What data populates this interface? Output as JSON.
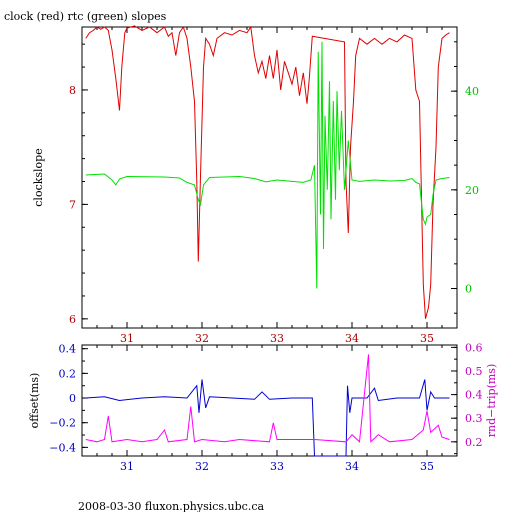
{
  "title": "clock (red) rtc (green) slopes",
  "footer": "2008-03-30 fluxon.physics.ubc.ca",
  "colors": {
    "clock": "#e00000",
    "rtc": "#00e000",
    "offset": "#0000d0",
    "rndtrip": "#ff00ff",
    "axis": "#000000"
  },
  "chart_data": [
    {
      "type": "line",
      "title": "clock (red) rtc (green) slopes",
      "xlabel": "",
      "ylabel": "clockslope",
      "y2label": "",
      "xlim": [
        30.4,
        35.4
      ],
      "ylim": [
        5.92,
        8.55
      ],
      "y2lim": [
        -8,
        53
      ],
      "xticks": [
        "31",
        "32",
        "33",
        "34",
        "35"
      ],
      "yticks": [
        "6",
        "7",
        "8"
      ],
      "y2ticks": [
        "0",
        "20",
        "40"
      ],
      "series": [
        {
          "axis": "left",
          "color": "#e00000",
          "points": [
            [
              30.45,
              8.45
            ],
            [
              30.5,
              8.5
            ],
            [
              30.55,
              8.52
            ],
            [
              30.6,
              8.55
            ],
            [
              30.65,
              8.53
            ],
            [
              30.7,
              8.55
            ],
            [
              30.75,
              8.52
            ],
            [
              30.8,
              8.35
            ],
            [
              30.85,
              8.1
            ],
            [
              30.9,
              7.82
            ],
            [
              30.93,
              8.2
            ],
            [
              30.97,
              8.5
            ],
            [
              31.0,
              8.54
            ],
            [
              31.1,
              8.56
            ],
            [
              31.2,
              8.52
            ],
            [
              31.3,
              8.55
            ],
            [
              31.4,
              8.5
            ],
            [
              31.5,
              8.55
            ],
            [
              31.55,
              8.47
            ],
            [
              31.6,
              8.5
            ],
            [
              31.65,
              8.3
            ],
            [
              31.7,
              8.5
            ],
            [
              31.75,
              8.55
            ],
            [
              31.8,
              8.45
            ],
            [
              31.85,
              8.2
            ],
            [
              31.9,
              7.9
            ],
            [
              31.93,
              7.2
            ],
            [
              31.95,
              6.5
            ],
            [
              31.98,
              7.25
            ],
            [
              32.02,
              8.2
            ],
            [
              32.05,
              8.45
            ],
            [
              32.1,
              8.4
            ],
            [
              32.15,
              8.3
            ],
            [
              32.2,
              8.45
            ],
            [
              32.3,
              8.5
            ],
            [
              32.4,
              8.48
            ],
            [
              32.5,
              8.52
            ],
            [
              32.6,
              8.5
            ],
            [
              32.65,
              8.55
            ],
            [
              32.7,
              8.3
            ],
            [
              32.75,
              8.15
            ],
            [
              32.8,
              8.25
            ],
            [
              32.85,
              8.1
            ],
            [
              32.9,
              8.3
            ],
            [
              32.95,
              8.1
            ],
            [
              33.0,
              8.35
            ],
            [
              33.05,
              8.0
            ],
            [
              33.1,
              8.25
            ],
            [
              33.15,
              8.15
            ],
            [
              33.2,
              8.05
            ],
            [
              33.25,
              8.2
            ],
            [
              33.3,
              7.95
            ],
            [
              33.35,
              8.15
            ],
            [
              33.4,
              7.88
            ],
            [
              33.43,
              8.1
            ],
            [
              33.47,
              8.47
            ],
            [
              33.9,
              8.42
            ],
            [
              33.92,
              7.2
            ],
            [
              33.95,
              6.75
            ],
            [
              33.98,
              7.5
            ],
            [
              34.02,
              7.9
            ],
            [
              34.05,
              8.3
            ],
            [
              34.1,
              8.45
            ],
            [
              34.2,
              8.4
            ],
            [
              34.3,
              8.45
            ],
            [
              34.4,
              8.4
            ],
            [
              34.5,
              8.45
            ],
            [
              34.6,
              8.42
            ],
            [
              34.7,
              8.48
            ],
            [
              34.8,
              8.45
            ],
            [
              34.85,
              8.0
            ],
            [
              34.9,
              7.9
            ],
            [
              34.95,
              6.3
            ],
            [
              34.98,
              6.0
            ],
            [
              35.02,
              6.1
            ],
            [
              35.05,
              6.3
            ],
            [
              35.08,
              7.0
            ],
            [
              35.12,
              7.5
            ],
            [
              35.15,
              8.2
            ],
            [
              35.2,
              8.45
            ],
            [
              35.25,
              8.48
            ],
            [
              35.3,
              8.5
            ]
          ]
        },
        {
          "axis": "right",
          "color": "#00e000",
          "points": [
            [
              30.45,
              23
            ],
            [
              30.7,
              23.2
            ],
            [
              30.8,
              22
            ],
            [
              30.85,
              21
            ],
            [
              30.9,
              22.2
            ],
            [
              31.0,
              22.7
            ],
            [
              31.5,
              22.6
            ],
            [
              31.7,
              22.4
            ],
            [
              31.8,
              21.5
            ],
            [
              31.9,
              21
            ],
            [
              31.95,
              18
            ],
            [
              31.98,
              17
            ],
            [
              32.02,
              21
            ],
            [
              32.1,
              22.5
            ],
            [
              32.5,
              22.7
            ],
            [
              32.7,
              22.3
            ],
            [
              32.85,
              21.6
            ],
            [
              33.0,
              22
            ],
            [
              33.2,
              21.7
            ],
            [
              33.35,
              21.5
            ],
            [
              33.45,
              22
            ],
            [
              33.5,
              25
            ],
            [
              33.53,
              0
            ],
            [
              33.55,
              48
            ],
            [
              33.58,
              15
            ],
            [
              33.6,
              50
            ],
            [
              33.62,
              8
            ],
            [
              33.64,
              35
            ],
            [
              33.67,
              20
            ],
            [
              33.7,
              42
            ],
            [
              33.72,
              14
            ],
            [
              33.75,
              38
            ],
            [
              33.78,
              18
            ],
            [
              33.8,
              40
            ],
            [
              33.83,
              24
            ],
            [
              33.86,
              36
            ],
            [
              33.9,
              20
            ],
            [
              33.95,
              30
            ],
            [
              34.0,
              22
            ],
            [
              34.1,
              21.7
            ],
            [
              34.3,
              22
            ],
            [
              34.5,
              21.8
            ],
            [
              34.7,
              21.9
            ],
            [
              34.8,
              22.3
            ],
            [
              34.85,
              21.5
            ],
            [
              34.9,
              21.2
            ],
            [
              34.95,
              14
            ],
            [
              34.98,
              13
            ],
            [
              35.0,
              14.5
            ],
            [
              35.05,
              15
            ],
            [
              35.08,
              19
            ],
            [
              35.12,
              22
            ],
            [
              35.2,
              22.3
            ],
            [
              35.3,
              22.5
            ]
          ]
        }
      ]
    },
    {
      "type": "line",
      "title": "",
      "xlabel": "",
      "ylabel": "offset(ms)",
      "y2label": "rnd−trip(ms)",
      "xlim": [
        30.4,
        35.4
      ],
      "ylim": [
        -0.47,
        0.43
      ],
      "y2lim": [
        0.14,
        0.61
      ],
      "xticks": [
        "31",
        "32",
        "33",
        "34",
        "35"
      ],
      "yticks": [
        "−0.4",
        "−0.2",
        "0",
        "0.2",
        "0.4"
      ],
      "y2ticks": [
        "0.2",
        "0.3",
        "0.4",
        "0.5",
        "0.6"
      ],
      "series": [
        {
          "axis": "left",
          "color": "#0000d0",
          "points": [
            [
              30.45,
              0.0
            ],
            [
              30.7,
              0.01
            ],
            [
              30.9,
              -0.02
            ],
            [
              31.2,
              0.0
            ],
            [
              31.5,
              0.01
            ],
            [
              31.8,
              0.0
            ],
            [
              31.93,
              0.1
            ],
            [
              31.96,
              -0.12
            ],
            [
              32.0,
              0.15
            ],
            [
              32.05,
              -0.08
            ],
            [
              32.1,
              0.01
            ],
            [
              32.4,
              0.0
            ],
            [
              32.7,
              -0.01
            ],
            [
              32.8,
              0.05
            ],
            [
              32.9,
              -0.01
            ],
            [
              33.2,
              0.0
            ],
            [
              33.47,
              0.0
            ],
            [
              33.5,
              -0.47
            ],
            [
              33.92,
              -0.47
            ],
            [
              33.94,
              0.1
            ],
            [
              33.97,
              -0.12
            ],
            [
              34.0,
              0.0
            ],
            [
              34.2,
              0.0
            ],
            [
              34.3,
              0.08
            ],
            [
              34.35,
              -0.02
            ],
            [
              34.6,
              0.0
            ],
            [
              34.9,
              0.0
            ],
            [
              34.97,
              0.15
            ],
            [
              35.0,
              -0.1
            ],
            [
              35.05,
              0.05
            ],
            [
              35.1,
              0.0
            ],
            [
              35.3,
              0.0
            ]
          ]
        },
        {
          "axis": "right",
          "color": "#ff00ff",
          "points": [
            [
              30.45,
              0.21
            ],
            [
              30.6,
              0.2
            ],
            [
              30.7,
              0.21
            ],
            [
              30.75,
              0.31
            ],
            [
              30.8,
              0.2
            ],
            [
              31.0,
              0.21
            ],
            [
              31.2,
              0.2
            ],
            [
              31.4,
              0.21
            ],
            [
              31.5,
              0.25
            ],
            [
              31.55,
              0.2
            ],
            [
              31.8,
              0.21
            ],
            [
              31.85,
              0.35
            ],
            [
              31.9,
              0.2
            ],
            [
              32.0,
              0.21
            ],
            [
              32.3,
              0.2
            ],
            [
              32.5,
              0.21
            ],
            [
              32.9,
              0.2
            ],
            [
              32.95,
              0.28
            ],
            [
              33.0,
              0.21
            ],
            [
              33.5,
              0.21
            ],
            [
              33.92,
              0.2
            ],
            [
              34.0,
              0.23
            ],
            [
              34.1,
              0.2
            ],
            [
              34.22,
              0.57
            ],
            [
              34.25,
              0.2
            ],
            [
              34.35,
              0.23
            ],
            [
              34.5,
              0.2
            ],
            [
              34.8,
              0.21
            ],
            [
              34.95,
              0.25
            ],
            [
              35.0,
              0.33
            ],
            [
              35.05,
              0.24
            ],
            [
              35.15,
              0.27
            ],
            [
              35.2,
              0.22
            ],
            [
              35.3,
              0.21
            ]
          ]
        }
      ]
    }
  ]
}
